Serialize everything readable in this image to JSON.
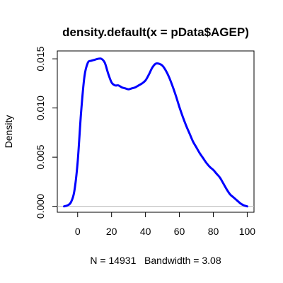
{
  "chart_data": {
    "type": "line",
    "title": "density.default(x = pData$AGEP)",
    "xlabel": "N = 14931   Bandwidth = 3.08",
    "ylabel": "Density",
    "xlim": [
      -12,
      104
    ],
    "ylim": [
      -0.0006,
      0.0158
    ],
    "xticks": [
      0,
      20,
      40,
      60,
      80,
      100
    ],
    "yticks": [
      "0.000",
      "0.005",
      "0.010",
      "0.015"
    ],
    "grid": false,
    "line_color": "#0000ff",
    "series": [
      {
        "x": [
          -8,
          -6,
          -4,
          -2,
          0,
          2,
          4,
          6,
          8,
          10,
          12,
          14,
          16,
          18,
          20,
          22,
          24,
          26,
          28,
          30,
          32,
          34,
          36,
          38,
          40,
          42,
          44,
          46,
          48,
          50,
          52,
          54,
          56,
          58,
          60,
          62,
          64,
          66,
          68,
          70,
          72,
          74,
          76,
          78,
          80,
          82,
          84,
          86,
          88,
          90,
          92,
          94,
          96,
          98,
          100
        ],
        "y": [
          0.0,
          0.0001,
          0.0004,
          0.0015,
          0.0045,
          0.0095,
          0.0132,
          0.0146,
          0.0148,
          0.0149,
          0.015,
          0.015,
          0.0146,
          0.0135,
          0.0126,
          0.0123,
          0.0123,
          0.0121,
          0.012,
          0.0119,
          0.012,
          0.0121,
          0.0123,
          0.0125,
          0.0128,
          0.0134,
          0.0141,
          0.0145,
          0.0145,
          0.0143,
          0.0138,
          0.0131,
          0.0122,
          0.0112,
          0.0101,
          0.0091,
          0.0082,
          0.0074,
          0.0066,
          0.006,
          0.0054,
          0.0049,
          0.0044,
          0.004,
          0.0037,
          0.0033,
          0.0029,
          0.0023,
          0.0017,
          0.0012,
          0.0009,
          0.0006,
          0.0003,
          0.0001,
          0.0
        ]
      }
    ]
  }
}
